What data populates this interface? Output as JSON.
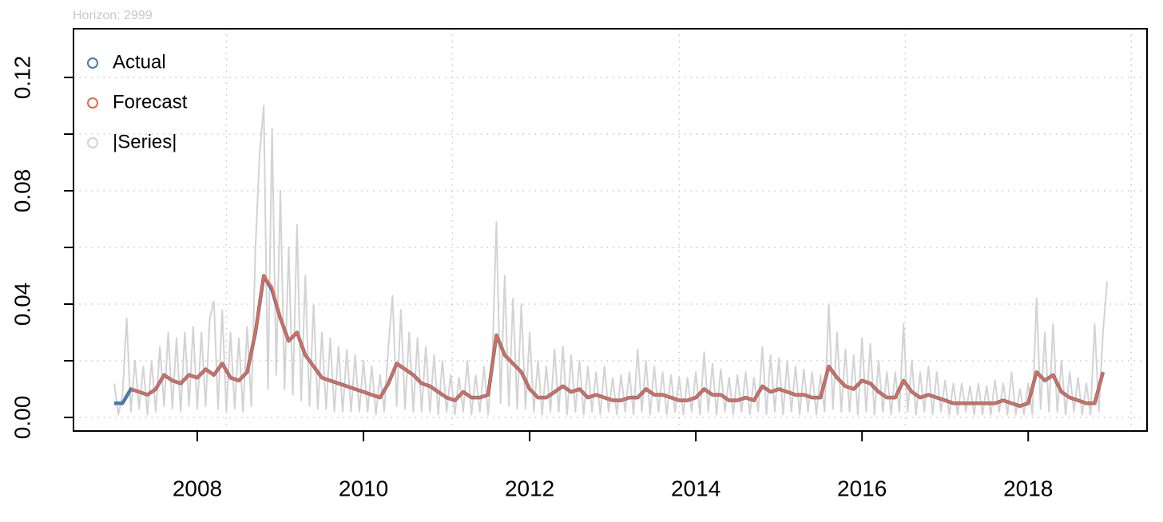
{
  "chart_data": {
    "type": "line",
    "title": "Horizon: 2999",
    "xlim": [
      2006.51,
      2019.43
    ],
    "xticks": [
      2008,
      2010,
      2012,
      2014,
      2016,
      2018
    ],
    "xgrid": [
      2008.35,
      2011.07,
      2013.8,
      2016.52,
      2019.24
    ],
    "ylim": [
      -0.0048,
      0.1372
    ],
    "yticks": [
      {
        "value": 0,
        "label": "0.00"
      },
      {
        "value": 0.04,
        "label": "0.04"
      },
      {
        "value": 0.08,
        "label": "0.08"
      },
      {
        "value": 0.12,
        "label": "0.12"
      }
    ],
    "yminorticks": [
      0.02,
      0.06,
      0.1
    ],
    "grid": true,
    "legend": "topleft",
    "series": [
      {
        "name": "|Series|",
        "color": "#d3d3d3",
        "x": [
          2007,
          2007.05,
          2007.1,
          2007.15,
          2007.2,
          2007.25,
          2007.3,
          2007.35,
          2007.4,
          2007.45,
          2007.5,
          2007.55,
          2007.6,
          2007.65,
          2007.7,
          2007.75,
          2007.8,
          2007.85,
          2007.9,
          2007.95,
          2008,
          2008.05,
          2008.1,
          2008.15,
          2008.2,
          2008.25,
          2008.3,
          2008.35,
          2008.4,
          2008.45,
          2008.5,
          2008.55,
          2008.6,
          2008.65,
          2008.7,
          2008.75,
          2008.8,
          2008.85,
          2008.9,
          2008.95,
          2009,
          2009.05,
          2009.1,
          2009.15,
          2009.2,
          2009.25,
          2009.3,
          2009.35,
          2009.4,
          2009.45,
          2009.5,
          2009.55,
          2009.6,
          2009.65,
          2009.7,
          2009.75,
          2009.8,
          2009.85,
          2009.9,
          2009.95,
          2010,
          2010.05,
          2010.1,
          2010.15,
          2010.2,
          2010.25,
          2010.3,
          2010.35,
          2010.4,
          2010.45,
          2010.5,
          2010.55,
          2010.6,
          2010.65,
          2010.7,
          2010.75,
          2010.8,
          2010.85,
          2010.9,
          2010.95,
          2011,
          2011.05,
          2011.1,
          2011.15,
          2011.2,
          2011.25,
          2011.3,
          2011.35,
          2011.4,
          2011.45,
          2011.5,
          2011.55,
          2011.6,
          2011.65,
          2011.7,
          2011.75,
          2011.8,
          2011.85,
          2011.9,
          2011.95,
          2012,
          2012.05,
          2012.1,
          2012.15,
          2012.2,
          2012.25,
          2012.3,
          2012.35,
          2012.4,
          2012.45,
          2012.5,
          2012.55,
          2012.6,
          2012.65,
          2012.7,
          2012.75,
          2012.8,
          2012.85,
          2012.9,
          2012.95,
          2013,
          2013.05,
          2013.1,
          2013.15,
          2013.2,
          2013.25,
          2013.3,
          2013.35,
          2013.4,
          2013.45,
          2013.5,
          2013.55,
          2013.6,
          2013.65,
          2013.7,
          2013.75,
          2013.8,
          2013.85,
          2013.9,
          2013.95,
          2014,
          2014.05,
          2014.1,
          2014.15,
          2014.2,
          2014.25,
          2014.3,
          2014.35,
          2014.4,
          2014.45,
          2014.5,
          2014.55,
          2014.6,
          2014.65,
          2014.7,
          2014.75,
          2014.8,
          2014.85,
          2014.9,
          2014.95,
          2015,
          2015.05,
          2015.1,
          2015.15,
          2015.2,
          2015.25,
          2015.3,
          2015.35,
          2015.4,
          2015.45,
          2015.5,
          2015.55,
          2015.6,
          2015.65,
          2015.7,
          2015.75,
          2015.8,
          2015.85,
          2015.9,
          2015.95,
          2016,
          2016.05,
          2016.1,
          2016.15,
          2016.2,
          2016.25,
          2016.3,
          2016.35,
          2016.4,
          2016.45,
          2016.5,
          2016.55,
          2016.6,
          2016.65,
          2016.7,
          2016.75,
          2016.8,
          2016.85,
          2016.9,
          2016.95,
          2017,
          2017.05,
          2017.1,
          2017.15,
          2017.2,
          2017.25,
          2017.3,
          2017.35,
          2017.4,
          2017.45,
          2017.5,
          2017.55,
          2017.6,
          2017.65,
          2017.7,
          2017.75,
          2017.8,
          2017.85,
          2017.9,
          2017.95,
          2018,
          2018.05,
          2018.1,
          2018.15,
          2018.2,
          2018.25,
          2018.3,
          2018.35,
          2018.4,
          2018.45,
          2018.5,
          2018.55,
          2018.6,
          2018.65,
          2018.7,
          2018.75,
          2018.8,
          2018.85,
          2018.9,
          2018.95
        ],
        "values": [
          0.012,
          0.001,
          0.008,
          0.035,
          0.002,
          0.02,
          0.003,
          0.018,
          0.001,
          0.02,
          0.002,
          0.025,
          0.004,
          0.03,
          0.003,
          0.028,
          0.002,
          0.03,
          0.004,
          0.032,
          0.003,
          0.03,
          0.004,
          0.035,
          0.041,
          0.003,
          0.038,
          0.002,
          0.03,
          0.003,
          0.028,
          0.002,
          0.032,
          0.004,
          0.06,
          0.093,
          0.11,
          0.01,
          0.102,
          0.015,
          0.08,
          0.01,
          0.06,
          0.008,
          0.068,
          0.006,
          0.05,
          0.004,
          0.04,
          0.003,
          0.03,
          0.003,
          0.028,
          0.002,
          0.025,
          0.002,
          0.024,
          0.002,
          0.022,
          0.002,
          0.02,
          0.002,
          0.018,
          0.001,
          0.015,
          0.002,
          0.025,
          0.043,
          0.004,
          0.038,
          0.003,
          0.03,
          0.002,
          0.028,
          0.002,
          0.025,
          0.002,
          0.022,
          0.001,
          0.02,
          0.002,
          0.015,
          0.001,
          0.014,
          0.002,
          0.02,
          0.001,
          0.015,
          0.002,
          0.018,
          0.001,
          0.02,
          0.069,
          0.005,
          0.05,
          0.004,
          0.042,
          0.003,
          0.04,
          0.003,
          0.03,
          0.002,
          0.02,
          0.001,
          0.018,
          0.002,
          0.024,
          0.002,
          0.025,
          0.001,
          0.022,
          0.002,
          0.02,
          0.001,
          0.018,
          0.002,
          0.016,
          0.001,
          0.018,
          0.002,
          0.014,
          0.001,
          0.015,
          0.002,
          0.016,
          0.001,
          0.024,
          0.002,
          0.02,
          0.001,
          0.018,
          0.002,
          0.016,
          0.001,
          0.015,
          0.002,
          0.014,
          0.001,
          0.014,
          0.002,
          0.016,
          0.001,
          0.023,
          0.002,
          0.019,
          0.001,
          0.017,
          0.002,
          0.014,
          0.001,
          0.015,
          0.002,
          0.016,
          0.001,
          0.014,
          0.002,
          0.025,
          0.001,
          0.022,
          0.002,
          0.021,
          0.001,
          0.02,
          0.002,
          0.018,
          0.001,
          0.017,
          0.002,
          0.016,
          0.001,
          0.015,
          0.002,
          0.04,
          0.003,
          0.03,
          0.002,
          0.024,
          0.002,
          0.022,
          0.001,
          0.028,
          0.002,
          0.026,
          0.001,
          0.02,
          0.002,
          0.016,
          0.001,
          0.016,
          0.002,
          0.033,
          0.002,
          0.02,
          0.001,
          0.016,
          0.002,
          0.018,
          0.001,
          0.016,
          0.002,
          0.013,
          0.001,
          0.012,
          0.001,
          0.012,
          0.002,
          0.011,
          0.001,
          0.012,
          0.001,
          0.011,
          0.001,
          0.013,
          0.002,
          0.012,
          0.001,
          0.016,
          0.001,
          0.01,
          0.001,
          0.012,
          0.001,
          0.042,
          0.003,
          0.03,
          0.002,
          0.033,
          0.002,
          0.02,
          0.001,
          0.016,
          0.002,
          0.014,
          0.001,
          0.012,
          0.001,
          0.033,
          0.002,
          0.03,
          0.048
        ]
      },
      {
        "name": "Actual",
        "color": "#4a7aa8",
        "x": [
          2007,
          2007.1,
          2007.2,
          2007.3,
          2007.4,
          2007.5,
          2007.6,
          2007.7,
          2007.8,
          2007.9,
          2008,
          2008.1,
          2008.2,
          2008.3,
          2008.4,
          2008.5,
          2008.6,
          2008.7,
          2008.8,
          2008.9,
          2009,
          2009.1,
          2009.2,
          2009.3,
          2009.4,
          2009.5,
          2009.6,
          2009.7,
          2009.8,
          2009.9,
          2010,
          2010.1,
          2010.2,
          2010.3,
          2010.4,
          2010.5,
          2010.6,
          2010.7,
          2010.8,
          2010.9,
          2011,
          2011.1,
          2011.2,
          2011.3,
          2011.4,
          2011.5,
          2011.6,
          2011.7,
          2011.8,
          2011.9,
          2012,
          2012.1,
          2012.2,
          2012.3,
          2012.4,
          2012.5,
          2012.6,
          2012.7,
          2012.8,
          2012.9,
          2013,
          2013.1,
          2013.2,
          2013.3,
          2013.4,
          2013.5,
          2013.6,
          2013.7,
          2013.8,
          2013.9,
          2014,
          2014.1,
          2014.2,
          2014.3,
          2014.4,
          2014.5,
          2014.6,
          2014.7,
          2014.8,
          2014.9,
          2015,
          2015.1,
          2015.2,
          2015.3,
          2015.4,
          2015.5,
          2015.6,
          2015.7,
          2015.8,
          2015.9,
          2016,
          2016.1,
          2016.2,
          2016.3,
          2016.4,
          2016.5,
          2016.6,
          2016.7,
          2016.8,
          2016.9,
          2017,
          2017.1,
          2017.2,
          2017.3,
          2017.4,
          2017.5,
          2017.6,
          2017.7,
          2017.8,
          2017.9,
          2018,
          2018.1,
          2018.2,
          2018.3,
          2018.4,
          2018.5,
          2018.6,
          2018.7,
          2018.8,
          2018.9
        ],
        "values": [
          0.005,
          0.005,
          0.01,
          0.009,
          0.008,
          0.01,
          0.015,
          0.013,
          0.012,
          0.015,
          0.014,
          0.017,
          0.015,
          0.019,
          0.014,
          0.013,
          0.016,
          0.03,
          0.05,
          0.045,
          0.035,
          0.027,
          0.03,
          0.022,
          0.018,
          0.014,
          0.013,
          0.012,
          0.011,
          0.01,
          0.009,
          0.008,
          0.007,
          0.012,
          0.019,
          0.017,
          0.015,
          0.012,
          0.011,
          0.009,
          0.007,
          0.006,
          0.009,
          0.007,
          0.007,
          0.008,
          0.029,
          0.022,
          0.019,
          0.016,
          0.01,
          0.007,
          0.007,
          0.009,
          0.011,
          0.009,
          0.01,
          0.007,
          0.008,
          0.007,
          0.006,
          0.006,
          0.007,
          0.007,
          0.01,
          0.008,
          0.008,
          0.007,
          0.006,
          0.006,
          0.007,
          0.01,
          0.008,
          0.008,
          0.006,
          0.006,
          0.007,
          0.006,
          0.011,
          0.009,
          0.01,
          0.009,
          0.008,
          0.008,
          0.007,
          0.007,
          0.018,
          0.014,
          0.011,
          0.01,
          0.013,
          0.012,
          0.009,
          0.007,
          0.007,
          0.013,
          0.009,
          0.007,
          0.008,
          0.007,
          0.006,
          0.005,
          0.005,
          0.005,
          0.005,
          0.005,
          0.005,
          0.006,
          0.005,
          0.004,
          0.005,
          0.016,
          0.013,
          0.015,
          0.009,
          0.007,
          0.006,
          0.005,
          0.005,
          0.016
        ]
      },
      {
        "name": "Forecast",
        "color": "#e8684a",
        "x": [
          2007.2,
          2007.3,
          2007.4,
          2007.5,
          2007.6,
          2007.7,
          2007.8,
          2007.9,
          2008,
          2008.1,
          2008.2,
          2008.3,
          2008.4,
          2008.5,
          2008.6,
          2008.7,
          2008.8,
          2008.9,
          2009,
          2009.1,
          2009.2,
          2009.3,
          2009.4,
          2009.5,
          2009.6,
          2009.7,
          2009.8,
          2009.9,
          2010,
          2010.1,
          2010.2,
          2010.3,
          2010.4,
          2010.5,
          2010.6,
          2010.7,
          2010.8,
          2010.9,
          2011,
          2011.1,
          2011.2,
          2011.3,
          2011.4,
          2011.5,
          2011.6,
          2011.7,
          2011.8,
          2011.9,
          2012,
          2012.1,
          2012.2,
          2012.3,
          2012.4,
          2012.5,
          2012.6,
          2012.7,
          2012.8,
          2012.9,
          2013,
          2013.1,
          2013.2,
          2013.3,
          2013.4,
          2013.5,
          2013.6,
          2013.7,
          2013.8,
          2013.9,
          2014,
          2014.1,
          2014.2,
          2014.3,
          2014.4,
          2014.5,
          2014.6,
          2014.7,
          2014.8,
          2014.9,
          2015,
          2015.1,
          2015.2,
          2015.3,
          2015.4,
          2015.5,
          2015.6,
          2015.7,
          2015.8,
          2015.9,
          2016,
          2016.1,
          2016.2,
          2016.3,
          2016.4,
          2016.5,
          2016.6,
          2016.7,
          2016.8,
          2016.9,
          2017,
          2017.1,
          2017.2,
          2017.3,
          2017.4,
          2017.5,
          2017.6,
          2017.7,
          2017.8,
          2017.9,
          2018,
          2018.1,
          2018.2,
          2018.3,
          2018.4,
          2018.5,
          2018.6,
          2018.7,
          2018.8,
          2018.9
        ],
        "values": [
          0.01,
          0.009,
          0.008,
          0.01,
          0.015,
          0.013,
          0.012,
          0.015,
          0.014,
          0.017,
          0.015,
          0.019,
          0.014,
          0.013,
          0.016,
          0.03,
          0.05,
          0.046,
          0.035,
          0.027,
          0.03,
          0.022,
          0.018,
          0.014,
          0.013,
          0.012,
          0.011,
          0.01,
          0.009,
          0.008,
          0.007,
          0.012,
          0.019,
          0.017,
          0.015,
          0.012,
          0.011,
          0.009,
          0.007,
          0.006,
          0.009,
          0.007,
          0.007,
          0.008,
          0.029,
          0.022,
          0.019,
          0.016,
          0.01,
          0.007,
          0.007,
          0.009,
          0.011,
          0.009,
          0.01,
          0.007,
          0.008,
          0.007,
          0.006,
          0.006,
          0.007,
          0.007,
          0.01,
          0.008,
          0.008,
          0.007,
          0.006,
          0.006,
          0.007,
          0.01,
          0.008,
          0.008,
          0.006,
          0.006,
          0.007,
          0.006,
          0.011,
          0.009,
          0.01,
          0.009,
          0.008,
          0.008,
          0.007,
          0.007,
          0.018,
          0.014,
          0.011,
          0.01,
          0.013,
          0.012,
          0.009,
          0.007,
          0.007,
          0.013,
          0.009,
          0.007,
          0.008,
          0.007,
          0.006,
          0.005,
          0.005,
          0.005,
          0.005,
          0.005,
          0.005,
          0.006,
          0.005,
          0.004,
          0.005,
          0.016,
          0.013,
          0.015,
          0.009,
          0.007,
          0.006,
          0.005,
          0.005,
          0.016
        ]
      }
    ]
  }
}
